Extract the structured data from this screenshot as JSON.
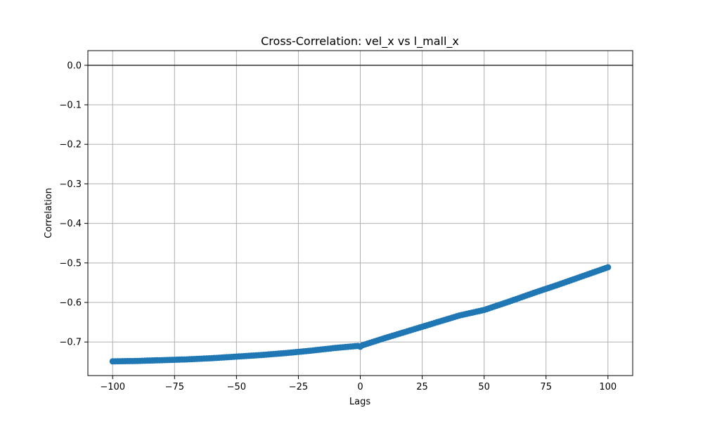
{
  "chart_data": {
    "type": "scatter",
    "title": "Cross-Correlation: vel_x vs l_mall_x",
    "xlabel": "Lags",
    "ylabel": "Correlation",
    "xlim": [
      -110,
      110
    ],
    "ylim": [
      -0.785,
      0.037
    ],
    "x_ticks": [
      -100,
      -75,
      -50,
      -25,
      0,
      25,
      50,
      75,
      100
    ],
    "x_tick_labels": [
      "−100",
      "−75",
      "−50",
      "−25",
      "0",
      "25",
      "50",
      "75",
      "100"
    ],
    "y_ticks": [
      0.0,
      -0.1,
      -0.2,
      -0.3,
      -0.4,
      -0.5,
      -0.6,
      -0.7
    ],
    "y_tick_labels": [
      "0.0",
      "−0.1",
      "−0.2",
      "−0.3",
      "−0.4",
      "−0.5",
      "−0.6",
      "−0.7"
    ],
    "grid": true,
    "baseline": 0.0,
    "color": "#1f77b4",
    "baseline_color": "#000000",
    "grid_color": "#b0b0b0",
    "series": [
      {
        "x": [
          -100,
          -90,
          -80,
          -70,
          -60,
          -50,
          -40,
          -30,
          -20,
          -10,
          -1,
          0,
          1,
          10,
          20,
          30,
          40,
          50,
          60,
          70,
          80,
          90,
          100
        ],
        "y": [
          -0.749,
          -0.748,
          -0.746,
          -0.744,
          -0.741,
          -0.737,
          -0.733,
          -0.728,
          -0.722,
          -0.715,
          -0.71,
          -0.712,
          -0.708,
          -0.69,
          -0.671,
          -0.652,
          -0.633,
          -0.619,
          -0.598,
          -0.576,
          -0.555,
          -0.533,
          -0.511
        ]
      }
    ]
  }
}
